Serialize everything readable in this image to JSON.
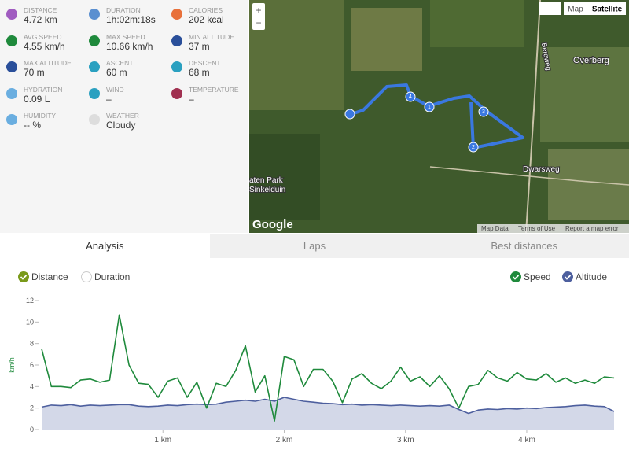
{
  "stats": [
    {
      "label": "DISTANCE",
      "value": "4.72 km"
    },
    {
      "label": "DURATION",
      "value": "1h:02m:18s"
    },
    {
      "label": "CALORIES",
      "value": "202 kcal"
    },
    {
      "label": "AVG SPEED",
      "value": "4.55 km/h"
    },
    {
      "label": "MAX SPEED",
      "value": "10.66 km/h"
    },
    {
      "label": "MIN ALTITUDE",
      "value": "37 m"
    },
    {
      "label": "MAX ALTITUDE",
      "value": "70 m"
    },
    {
      "label": "ASCENT",
      "value": "60 m"
    },
    {
      "label": "DESCENT",
      "value": "68 m"
    },
    {
      "label": "HYDRATION",
      "value": "0.09 L"
    },
    {
      "label": "WIND",
      "value": "–"
    },
    {
      "label": "TEMPERATURE",
      "value": "–"
    },
    {
      "label": "HUMIDITY",
      "value": "-- %"
    },
    {
      "label": "WEATHER",
      "value": "Cloudy"
    }
  ],
  "map": {
    "zoom": [
      "+",
      "−"
    ],
    "buttons": [
      "Map",
      "Satellite"
    ],
    "places": [
      "Overberg",
      "Bergweg",
      "Dwarsweg",
      "aten Park",
      "Sinkelduin"
    ],
    "markers": [
      "4",
      "1",
      "3",
      "2"
    ],
    "footer": [
      "Map Data",
      "Terms of Use",
      "Report a map error"
    ],
    "logo": "Google"
  },
  "tabs": [
    "Analysis",
    "Laps",
    "Best distances"
  ],
  "toggles": [
    {
      "label": "Distance",
      "checked": true,
      "color": "#7a9a1a"
    },
    {
      "label": "Duration",
      "checked": false,
      "color": "#7a9a1a"
    },
    {
      "label": "Speed",
      "checked": true,
      "color": "#1f8a3c"
    },
    {
      "label": "Altitude",
      "checked": true,
      "color": "#4d5f9e"
    }
  ],
  "chart_data": {
    "type": "line",
    "y_label": "km/h",
    "xlim": [
      0,
      4.72
    ],
    "xticks": [
      {
        "value": 1,
        "label": "1 km"
      },
      {
        "value": 2,
        "label": "2 km"
      },
      {
        "value": 3,
        "label": "3 km"
      },
      {
        "value": 4,
        "label": "4 km"
      }
    ],
    "ylim": [
      0,
      12
    ],
    "yticks": [
      0,
      2,
      4,
      6,
      8,
      10,
      12
    ],
    "y2lim": [
      4,
      268
    ],
    "x": [
      0,
      0.08,
      0.16,
      0.24,
      0.32,
      0.4,
      0.48,
      0.56,
      0.64,
      0.72,
      0.8,
      0.88,
      0.96,
      1.04,
      1.12,
      1.2,
      1.28,
      1.36,
      1.44,
      1.52,
      1.6,
      1.68,
      1.76,
      1.84,
      1.92,
      2,
      2.08,
      2.16,
      2.24,
      2.32,
      2.4,
      2.48,
      2.56,
      2.64,
      2.72,
      2.8,
      2.88,
      2.96,
      3.04,
      3.12,
      3.2,
      3.28,
      3.36,
      3.44,
      3.52,
      3.6,
      3.68,
      3.76,
      3.84,
      3.92,
      4,
      4.08,
      4.16,
      4.24,
      4.32,
      4.4,
      4.48,
      4.56,
      4.64,
      4.72
    ],
    "series": [
      {
        "name": "Altitude",
        "axis": "y2",
        "color": "#4d5f9e",
        "fill": "#d3d8e8",
        "values": [
          50,
          54,
          53,
          55,
          52,
          54,
          53,
          54,
          55,
          55,
          52,
          51,
          52,
          54,
          53,
          55,
          56,
          55,
          56,
          60,
          62,
          64,
          62,
          66,
          62,
          70,
          66,
          62,
          60,
          58,
          57,
          55,
          56,
          54,
          55,
          54,
          53,
          54,
          53,
          52,
          53,
          52,
          54,
          45,
          37,
          44,
          46,
          45,
          47,
          46,
          48,
          47,
          49,
          50,
          51,
          53,
          54,
          52,
          51,
          41
        ]
      },
      {
        "name": "Speed",
        "color": "#1f8a3c",
        "values": [
          7.5,
          4.0,
          4.0,
          3.9,
          4.6,
          4.7,
          4.4,
          4.6,
          10.66,
          6.0,
          4.3,
          4.2,
          3.0,
          4.5,
          4.8,
          3.0,
          4.4,
          2.0,
          4.3,
          4.0,
          5.5,
          7.8,
          3.5,
          5.0,
          0.8,
          6.8,
          6.5,
          4.0,
          5.6,
          5.6,
          4.5,
          2.5,
          4.7,
          5.2,
          4.3,
          3.8,
          4.5,
          5.8,
          4.5,
          4.9,
          4.0,
          5.0,
          3.8,
          2.0,
          4.0,
          4.2,
          5.5,
          4.8,
          4.5,
          5.3,
          4.7,
          4.6,
          5.2,
          4.4,
          4.8,
          4.3,
          4.6,
          4.3,
          4.9,
          4.8
        ]
      }
    ]
  }
}
